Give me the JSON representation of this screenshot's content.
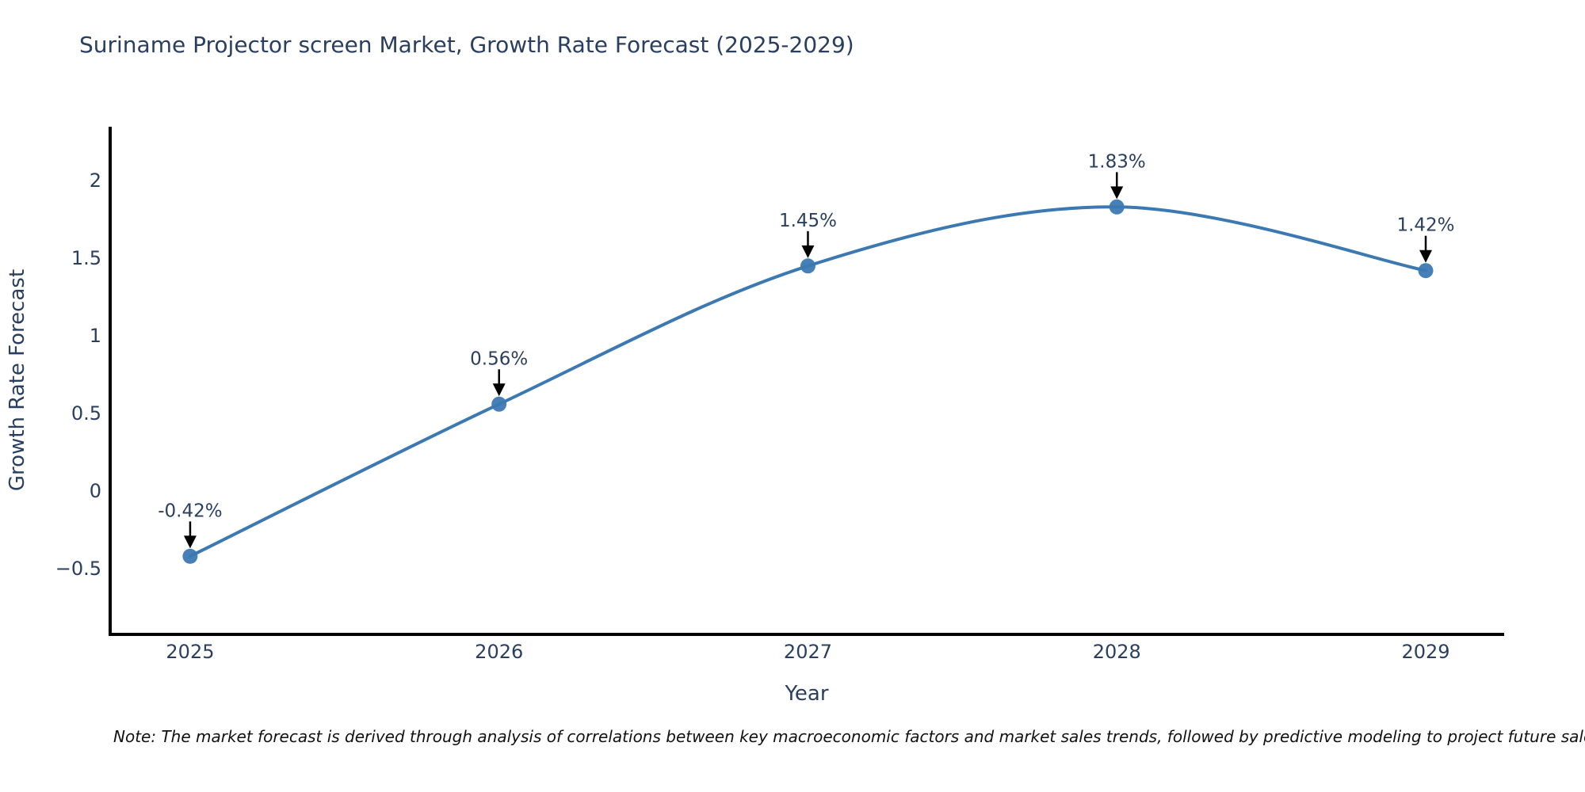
{
  "title": "Suriname Projector screen Market, Growth Rate Forecast (2025-2029)",
  "note": "Note: The market forecast is derived through analysis of correlations between key macroeconomic factors and market sales trends, followed by predictive modeling to project future sales.",
  "chart_data": {
    "type": "line",
    "title": "Suriname Projector screen Market, Growth Rate Forecast (2025-2029)",
    "xlabel": "Year",
    "ylabel": "Growth Rate Forecast",
    "categories": [
      2025,
      2026,
      2027,
      2028,
      2029
    ],
    "x_tick_labels": [
      "2025",
      "2026",
      "2027",
      "2028",
      "2029"
    ],
    "values": [
      -0.42,
      0.56,
      1.45,
      1.83,
      1.42
    ],
    "point_labels": [
      "-0.42%",
      "0.56%",
      "1.45%",
      "1.83%",
      "1.42%"
    ],
    "y_ticks": [
      2,
      1.5,
      1,
      0.5,
      0,
      -0.5
    ],
    "y_tick_labels": [
      "2",
      "1.5",
      "1",
      "0.5",
      "0",
      "−0.5"
    ],
    "xlim": [
      2024.741,
      2029.254
    ],
    "ylim": [
      -0.923,
      2.347
    ],
    "grid": false,
    "legend": "none",
    "curve": "spline",
    "line_color": "#3c79b3",
    "marker_color": "#3c79b3",
    "axis_color": "#000000",
    "text_color": "#2a3f5f",
    "annotation_arrow_color": "#000000",
    "background": "#ffffff"
  }
}
